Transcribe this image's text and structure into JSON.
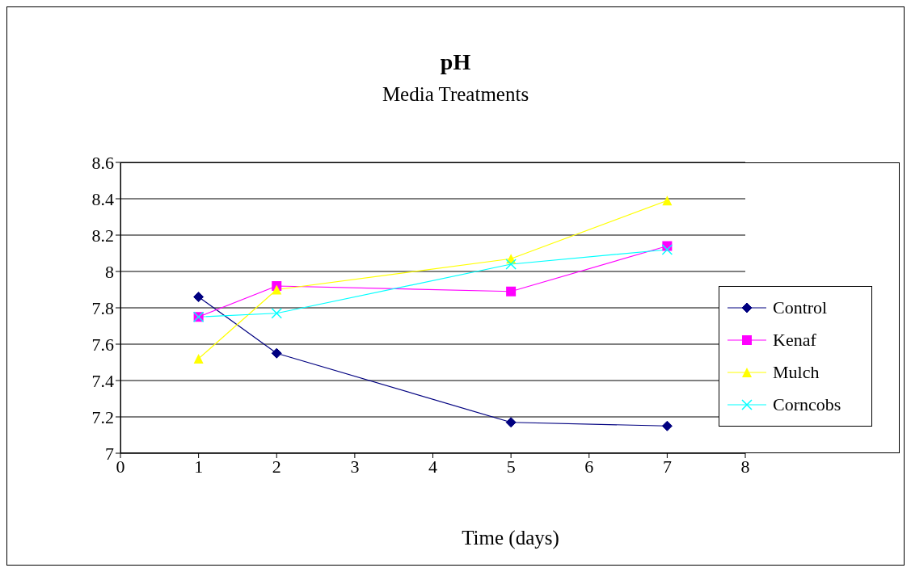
{
  "chart_data": {
    "type": "line",
    "title": "pH",
    "subtitle": "Media Treatments",
    "xlabel": "Time (days)",
    "x": [
      1,
      2,
      5,
      7
    ],
    "series": [
      {
        "name": "Control",
        "color": "#000080",
        "marker": "diamond",
        "values": [
          7.86,
          7.55,
          7.17,
          7.15
        ]
      },
      {
        "name": "Kenaf",
        "color": "#ff00ff",
        "marker": "square",
        "values": [
          7.75,
          7.92,
          7.89,
          8.14
        ]
      },
      {
        "name": "Mulch",
        "color": "#ffff00",
        "marker": "triangle",
        "values": [
          7.52,
          7.9,
          8.07,
          8.39
        ]
      },
      {
        "name": "Corncobs",
        "color": "#00ffff",
        "marker": "cross",
        "values": [
          7.75,
          7.77,
          8.04,
          8.12
        ]
      }
    ],
    "xlim": [
      0,
      8
    ],
    "xticks": [
      0,
      1,
      2,
      3,
      4,
      5,
      6,
      7,
      8
    ],
    "ylim": [
      7,
      8.6
    ],
    "yticks": [
      7,
      7.2,
      7.4,
      7.6,
      7.8,
      8,
      8.2,
      8.4,
      8.6
    ],
    "grid": "y",
    "legend": "right",
    "line_style": "solid"
  }
}
